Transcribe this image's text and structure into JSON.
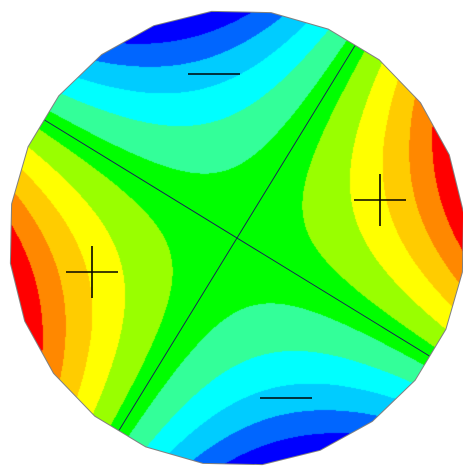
{
  "figure": {
    "kind": "contour-disk",
    "description_visible": false,
    "colormap": [
      "#0000FF",
      "#0066FF",
      "#00CCFF",
      "#00FFFF",
      "#33FF99",
      "#00FF00",
      "#99FF00",
      "#FFFF00",
      "#FFCC00",
      "#FF8800",
      "#FF0000"
    ],
    "levels": 11,
    "value_range": [
      -1,
      1
    ],
    "nodal_lines": 2,
    "signs": [
      {
        "id": "left",
        "symbol": "+"
      },
      {
        "id": "right",
        "symbol": "+"
      },
      {
        "id": "top",
        "symbol": "−"
      },
      {
        "id": "bottom",
        "symbol": "−"
      }
    ],
    "outline_color": "#808080",
    "line_color": "#1a1a5a",
    "sign_color": "#000000"
  }
}
